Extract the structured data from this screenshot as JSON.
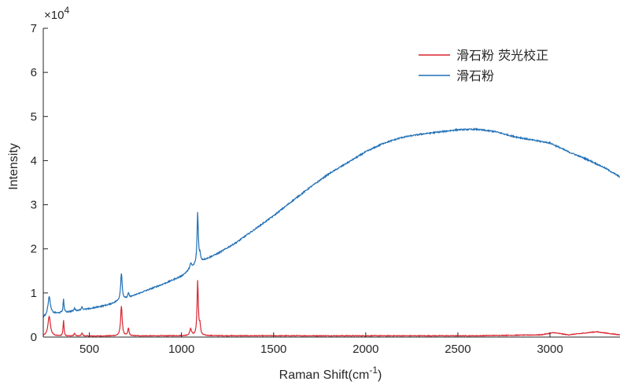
{
  "chart_data": {
    "type": "line",
    "xlabel": "Raman Shift(cm",
    "xlabel_sup": "-1",
    "xlabel_close": ")",
    "ylabel": "Intensity",
    "y_exponent_text": "×10",
    "y_exponent_power": "4",
    "xlim": [
      250,
      3380
    ],
    "ylim": [
      0,
      7
    ],
    "y_scale_factor": 10000,
    "xticks": [
      500,
      1000,
      1500,
      2000,
      2500,
      3000
    ],
    "yticks": [
      0,
      1,
      2,
      3,
      4,
      5,
      6,
      7
    ],
    "grid": false,
    "legend_position": "top-right",
    "colors": {
      "corrected": "#d9252f",
      "raw": "#1f6fb5",
      "axis": "#262626"
    },
    "series": [
      {
        "name": "滑石粉 荧光校正",
        "color": "#d9252f",
        "baseline": [
          [
            250,
            0.02
          ],
          [
            1000,
            0.03
          ],
          [
            2600,
            0.03
          ],
          [
            2950,
            0.05
          ],
          [
            3020,
            0.1
          ],
          [
            3100,
            0.05
          ],
          [
            3250,
            0.12
          ],
          [
            3380,
            0.05
          ]
        ],
        "peaks": [
          {
            "x": 282,
            "h": 0.45,
            "w": 8
          },
          {
            "x": 360,
            "h": 0.36,
            "w": 3
          },
          {
            "x": 420,
            "h": 0.06,
            "w": 4
          },
          {
            "x": 460,
            "h": 0.07,
            "w": 4
          },
          {
            "x": 674,
            "h": 0.68,
            "w": 5
          },
          {
            "x": 712,
            "h": 0.17,
            "w": 4
          },
          {
            "x": 1050,
            "h": 0.15,
            "w": 6
          },
          {
            "x": 1088,
            "h": 1.23,
            "w": 4
          },
          {
            "x": 1100,
            "h": 0.22,
            "w": 4
          }
        ],
        "noise": 0.015
      },
      {
        "name": "滑石粉",
        "color": "#1f6fb5",
        "baseline": [
          [
            250,
            0.44
          ],
          [
            300,
            0.52
          ],
          [
            400,
            0.58
          ],
          [
            500,
            0.64
          ],
          [
            600,
            0.73
          ],
          [
            700,
            0.87
          ],
          [
            800,
            1.04
          ],
          [
            900,
            1.2
          ],
          [
            1000,
            1.38
          ],
          [
            1100,
            1.7
          ],
          [
            1200,
            1.9
          ],
          [
            1300,
            2.15
          ],
          [
            1400,
            2.45
          ],
          [
            1500,
            2.75
          ],
          [
            1600,
            3.08
          ],
          [
            1700,
            3.4
          ],
          [
            1800,
            3.7
          ],
          [
            1900,
            3.95
          ],
          [
            2000,
            4.2
          ],
          [
            2100,
            4.4
          ],
          [
            2200,
            4.53
          ],
          [
            2300,
            4.6
          ],
          [
            2400,
            4.65
          ],
          [
            2500,
            4.7
          ],
          [
            2600,
            4.71
          ],
          [
            2700,
            4.66
          ],
          [
            2800,
            4.55
          ],
          [
            2900,
            4.47
          ],
          [
            3000,
            4.4
          ],
          [
            3100,
            4.2
          ],
          [
            3200,
            4.03
          ],
          [
            3300,
            3.83
          ],
          [
            3380,
            3.63
          ]
        ],
        "peaks": [
          {
            "x": 282,
            "h": 0.42,
            "w": 8
          },
          {
            "x": 360,
            "h": 0.3,
            "w": 3
          },
          {
            "x": 420,
            "h": 0.06,
            "w": 4
          },
          {
            "x": 460,
            "h": 0.07,
            "w": 4
          },
          {
            "x": 674,
            "h": 0.62,
            "w": 5
          },
          {
            "x": 712,
            "h": 0.1,
            "w": 4
          },
          {
            "x": 1050,
            "h": 0.12,
            "w": 6
          },
          {
            "x": 1088,
            "h": 1.15,
            "w": 4
          },
          {
            "x": 1100,
            "h": 0.15,
            "w": 4
          }
        ],
        "noise": 0.03
      }
    ]
  }
}
